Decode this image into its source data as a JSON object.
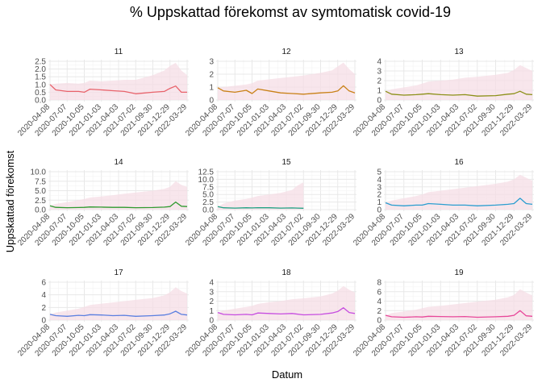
{
  "chart_data": {
    "type": "line",
    "title": "% Uppskattad förekomst av symtomatisk covid-19",
    "xlabel": "Datum",
    "ylabel": "Uppskattad förekomst",
    "x_ticks": [
      "2020-04-08",
      "2020-07-07",
      "2020-10-05",
      "2021-01-03",
      "2021-04-03",
      "2021-07-02",
      "2021-09-30",
      "2021-12-29",
      "2022-03-29"
    ],
    "x_range": [
      "2020-04-08",
      "2022-03-29"
    ],
    "grid": true,
    "legend": "none",
    "band_color": "#f5dde6",
    "panels": [
      {
        "name": "11",
        "color": "#e8636b",
        "ylim": [
          0,
          2.5
        ],
        "yticks": [
          "0.0",
          "0.5",
          "1.0",
          "1.5",
          "2.0",
          "2.5"
        ],
        "x": [
          "2020-04-08",
          "2020-05-08",
          "2020-07-07",
          "2020-09-05",
          "2020-10-05",
          "2020-11-04",
          "2021-01-03",
          "2021-03-04",
          "2021-05-03",
          "2021-07-02",
          "2021-09-30",
          "2021-11-29",
          "2021-12-29",
          "2022-01-28",
          "2022-02-27",
          "2022-03-29"
        ],
        "values": [
          1.0,
          0.65,
          0.55,
          0.55,
          0.5,
          0.7,
          0.65,
          0.6,
          0.55,
          0.4,
          0.5,
          0.55,
          0.75,
          0.9,
          0.5,
          0.5
        ],
        "upper": [
          1.0,
          1.05,
          1.1,
          1.05,
          1.1,
          1.25,
          1.2,
          1.25,
          1.3,
          1.3,
          1.6,
          1.9,
          2.2,
          2.4,
          1.9,
          1.6
        ]
      },
      {
        "name": "12",
        "color": "#c98117",
        "ylim": [
          0,
          3
        ],
        "yticks": [
          "0",
          "1",
          "2",
          "3"
        ],
        "x": [
          "2020-04-08",
          "2020-05-08",
          "2020-07-07",
          "2020-09-05",
          "2020-10-05",
          "2020-11-04",
          "2021-01-03",
          "2021-03-04",
          "2021-05-03",
          "2021-07-02",
          "2021-09-30",
          "2021-11-29",
          "2021-12-29",
          "2022-01-28",
          "2022-02-27",
          "2022-03-29"
        ],
        "values": [
          0.95,
          0.7,
          0.6,
          0.75,
          0.5,
          0.85,
          0.7,
          0.55,
          0.5,
          0.45,
          0.55,
          0.6,
          0.7,
          1.1,
          0.7,
          0.55
        ],
        "upper": [
          0.95,
          1.0,
          1.1,
          1.2,
          1.3,
          1.5,
          1.6,
          1.7,
          1.8,
          1.9,
          2.1,
          2.3,
          2.6,
          2.9,
          2.4,
          2.0
        ]
      },
      {
        "name": "13",
        "color": "#8c9018",
        "ylim": [
          0,
          4
        ],
        "yticks": [
          "0",
          "1",
          "2",
          "3",
          "4"
        ],
        "x": [
          "2020-04-08",
          "2020-05-08",
          "2020-07-07",
          "2020-09-05",
          "2020-10-05",
          "2020-11-04",
          "2021-01-03",
          "2021-03-04",
          "2021-05-03",
          "2021-07-02",
          "2021-09-30",
          "2021-11-29",
          "2021-12-29",
          "2022-01-28",
          "2022-02-27",
          "2022-03-29"
        ],
        "values": [
          0.9,
          0.6,
          0.5,
          0.55,
          0.6,
          0.65,
          0.55,
          0.5,
          0.55,
          0.4,
          0.45,
          0.6,
          0.65,
          0.9,
          0.6,
          0.55
        ],
        "upper": [
          0.9,
          1.1,
          1.3,
          1.5,
          1.7,
          1.9,
          2.0,
          2.1,
          2.3,
          2.4,
          2.6,
          2.8,
          3.1,
          3.6,
          3.3,
          3.0
        ]
      },
      {
        "name": "14",
        "color": "#2e9a2e",
        "ylim": [
          0,
          10
        ],
        "yticks": [
          "0.0",
          "2.5",
          "5.0",
          "7.5",
          "10.0"
        ],
        "x": [
          "2020-04-08",
          "2020-05-08",
          "2020-07-07",
          "2020-09-05",
          "2020-10-05",
          "2020-11-04",
          "2021-01-03",
          "2021-03-04",
          "2021-05-03",
          "2021-07-02",
          "2021-09-30",
          "2021-11-29",
          "2021-12-29",
          "2022-01-28",
          "2022-02-27",
          "2022-03-29"
        ],
        "values": [
          1.0,
          0.6,
          0.5,
          0.55,
          0.6,
          0.7,
          0.65,
          0.6,
          0.6,
          0.5,
          0.55,
          0.65,
          0.8,
          2.0,
          0.9,
          0.8
        ],
        "upper": [
          1.0,
          1.5,
          2.0,
          2.5,
          2.8,
          3.2,
          3.5,
          3.8,
          4.2,
          4.5,
          5.0,
          5.5,
          6.0,
          7.5,
          6.5,
          6.0
        ]
      },
      {
        "name": "15",
        "color": "#1fa183",
        "ylim": [
          0,
          12.5
        ],
        "yticks": [
          "0.0",
          "2.5",
          "5.0",
          "7.5",
          "10.0",
          "12.5"
        ],
        "x": [
          "2020-04-08",
          "2020-05-08",
          "2020-07-07",
          "2020-09-05",
          "2020-10-05",
          "2020-11-04",
          "2021-01-03",
          "2021-03-04",
          "2021-05-03",
          "2021-06-02",
          "2021-07-02"
        ],
        "values": [
          1.0,
          0.6,
          0.5,
          0.6,
          0.55,
          0.65,
          0.6,
          0.5,
          0.55,
          0.5,
          0.45
        ],
        "upper": [
          1.0,
          2.0,
          3.0,
          3.5,
          4.0,
          4.5,
          5.0,
          5.5,
          6.5,
          8.0,
          9.0
        ]
      },
      {
        "name": "16",
        "color": "#2b9ed0",
        "ylim": [
          0,
          5
        ],
        "yticks": [
          "0",
          "1",
          "2",
          "3",
          "4",
          "5"
        ],
        "x": [
          "2020-04-08",
          "2020-05-08",
          "2020-07-07",
          "2020-09-05",
          "2020-10-05",
          "2020-11-04",
          "2021-01-03",
          "2021-03-04",
          "2021-05-03",
          "2021-07-02",
          "2021-09-30",
          "2021-11-29",
          "2021-12-29",
          "2022-01-28",
          "2022-02-27",
          "2022-03-29"
        ],
        "values": [
          0.9,
          0.6,
          0.5,
          0.6,
          0.6,
          0.8,
          0.7,
          0.6,
          0.6,
          0.5,
          0.6,
          0.7,
          0.8,
          1.5,
          0.8,
          0.7
        ],
        "upper": [
          0.9,
          1.2,
          1.5,
          1.8,
          2.0,
          2.3,
          2.5,
          2.7,
          2.9,
          3.1,
          3.4,
          3.7,
          4.0,
          4.6,
          4.2,
          3.8
        ]
      },
      {
        "name": "17",
        "color": "#5b7fe0",
        "ylim": [
          0,
          6
        ],
        "yticks": [
          "0",
          "2",
          "4",
          "6"
        ],
        "x": [
          "2020-04-08",
          "2020-05-08",
          "2020-07-07",
          "2020-09-05",
          "2020-10-05",
          "2020-11-04",
          "2021-01-03",
          "2021-03-04",
          "2021-05-03",
          "2021-07-02",
          "2021-09-30",
          "2021-11-29",
          "2021-12-29",
          "2022-01-28",
          "2022-02-27",
          "2022-03-29"
        ],
        "values": [
          0.9,
          0.7,
          0.6,
          0.75,
          0.7,
          0.85,
          0.8,
          0.7,
          0.75,
          0.6,
          0.7,
          0.8,
          1.0,
          1.4,
          0.9,
          0.8
        ],
        "upper": [
          0.9,
          1.2,
          1.5,
          1.8,
          2.1,
          2.4,
          2.6,
          2.8,
          3.0,
          3.2,
          3.5,
          3.9,
          4.4,
          5.2,
          4.6,
          4.2
        ]
      },
      {
        "name": "18",
        "color": "#c64de0",
        "ylim": [
          0,
          4
        ],
        "yticks": [
          "0",
          "1",
          "2",
          "3",
          "4"
        ],
        "x": [
          "2020-04-08",
          "2020-05-08",
          "2020-07-07",
          "2020-09-05",
          "2020-10-05",
          "2020-11-04",
          "2021-01-03",
          "2021-03-04",
          "2021-05-03",
          "2021-07-02",
          "2021-09-30",
          "2021-11-29",
          "2021-12-29",
          "2022-01-28",
          "2022-02-27",
          "2022-03-29"
        ],
        "values": [
          0.8,
          0.6,
          0.55,
          0.6,
          0.55,
          0.75,
          0.7,
          0.65,
          0.7,
          0.55,
          0.6,
          0.75,
          0.9,
          1.3,
          0.8,
          0.7
        ],
        "upper": [
          0.8,
          1.0,
          1.2,
          1.4,
          1.5,
          1.7,
          1.9,
          2.0,
          2.2,
          2.3,
          2.5,
          2.8,
          3.1,
          3.6,
          3.2,
          2.9
        ]
      },
      {
        "name": "19",
        "color": "#e8489a",
        "ylim": [
          0,
          8
        ],
        "yticks": [
          "0",
          "2",
          "4",
          "6",
          "8"
        ],
        "x": [
          "2020-04-08",
          "2020-05-08",
          "2020-07-07",
          "2020-09-05",
          "2020-10-05",
          "2020-11-04",
          "2021-01-03",
          "2021-03-04",
          "2021-05-03",
          "2021-07-02",
          "2021-09-30",
          "2021-11-29",
          "2021-12-29",
          "2022-01-28",
          "2022-02-27",
          "2022-03-29"
        ],
        "values": [
          1.0,
          0.7,
          0.6,
          0.7,
          0.65,
          0.8,
          0.75,
          0.7,
          0.75,
          0.6,
          0.7,
          0.8,
          1.0,
          2.0,
          0.9,
          0.8
        ],
        "upper": [
          1.0,
          1.5,
          1.8,
          2.2,
          2.5,
          2.8,
          3.0,
          3.3,
          3.6,
          3.9,
          4.3,
          4.8,
          5.3,
          6.5,
          5.8,
          5.2
        ]
      }
    ]
  }
}
